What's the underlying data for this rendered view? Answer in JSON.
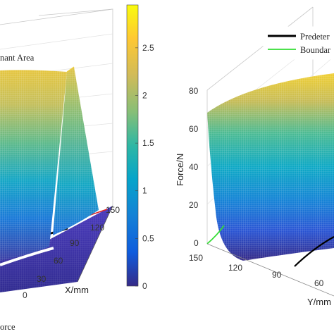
{
  "chart_data": [
    {
      "type": "surface",
      "legend_fragment": "nant Area",
      "bottom_fragment": "orce",
      "x_axis": {
        "label": "X/mm",
        "ticks": [
          "0",
          "30",
          "60",
          "90",
          "120",
          "150"
        ]
      },
      "colorbar": {
        "ticks": [
          "0",
          "0.5",
          "1",
          "1.5",
          "2",
          "2.5"
        ],
        "range": [
          0,
          2.95
        ],
        "colormap": "parula"
      }
    },
    {
      "type": "surface",
      "z_axis": {
        "label": "Force/N",
        "ticks": [
          "0",
          "20",
          "40",
          "60",
          "80"
        ],
        "range": [
          0,
          80
        ]
      },
      "y_axis": {
        "label": "Y/mm",
        "ticks": [
          "150",
          "120",
          "90",
          "60"
        ]
      },
      "legend": [
        {
          "label": "Predeter",
          "color": "#000000"
        },
        {
          "label": "Boundar",
          "color": "#33dd33"
        }
      ]
    }
  ],
  "colors": {
    "parula": [
      "#352a87",
      "#0f5cdd",
      "#1481d6",
      "#06a4ca",
      "#2eb7a4",
      "#87bf77",
      "#d1bb59",
      "#fec832",
      "#f9fb0e"
    ],
    "boundary": "#33dd33",
    "predetermined": "#000000",
    "red_line": "#dd2222"
  }
}
